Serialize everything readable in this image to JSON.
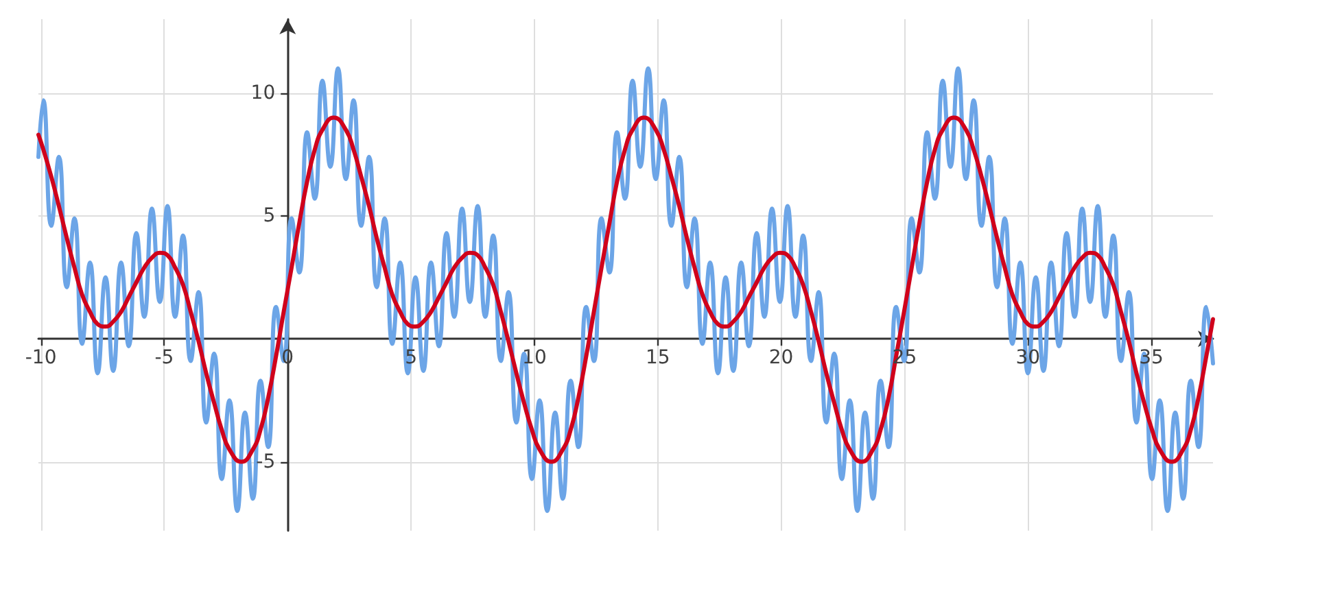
{
  "chart_data": {
    "type": "line",
    "x": [
      -10.1,
      -9.9,
      -9.58,
      -9.27,
      -8.95,
      -8.64,
      -8.33,
      -8.01,
      -7.7,
      -7.38,
      -7.07,
      -6.75,
      -6.44,
      -6.13,
      -5.81,
      -5.5,
      -5.18,
      -4.87,
      -4.56,
      -4.24,
      -3.93,
      -3.61,
      -3.3,
      -2.98,
      -2.67,
      -2.36,
      -2.04,
      -1.73,
      -1.41,
      -1.1,
      -0.79,
      -0.47,
      -0.16,
      0.16,
      0.47,
      0.79,
      1.1,
      1.41,
      1.73,
      2.04,
      2.36,
      2.67,
      2.98,
      3.3,
      3.61,
      3.93,
      4.24,
      4.56,
      4.87,
      5.18,
      5.5,
      5.81,
      6.13,
      6.44,
      6.75,
      7.07,
      7.38,
      7.7,
      8.01,
      8.33,
      8.64,
      8.95,
      9.27,
      9.58,
      9.9,
      10.21,
      10.52,
      10.84,
      11.15,
      11.47,
      11.78,
      12.1,
      12.41,
      12.72,
      13.04,
      13.35,
      13.67,
      13.98,
      14.29,
      14.61,
      14.92,
      15.24,
      15.55,
      15.87,
      16.18,
      16.49,
      16.81,
      17.12,
      17.44,
      17.75,
      18.06,
      18.38,
      18.69,
      19.01,
      19.32,
      19.63,
      19.95,
      20.26,
      20.58,
      20.89,
      21.21,
      21.52,
      21.83,
      22.15,
      22.46,
      22.78,
      23.09,
      23.4,
      23.72,
      24.03,
      24.35,
      24.66,
      24.98,
      25.29,
      25.6,
      25.92,
      26.23,
      26.55,
      26.86,
      27.17,
      27.49,
      27.8,
      28.12,
      28.43,
      28.75,
      29.06,
      29.37,
      29.69,
      30.0,
      30.32,
      30.63,
      30.94,
      31.26,
      31.57,
      31.89,
      32.2,
      32.52,
      32.83,
      33.14,
      33.46,
      33.77,
      34.09,
      34.4,
      34.71,
      35.03,
      35.34,
      35.66,
      35.97,
      36.29,
      36.6,
      36.91,
      37.23,
      37.5
    ],
    "xlim": [
      -10.1,
      37.5
    ],
    "xticks": [
      -10,
      -5,
      0,
      5,
      10,
      15,
      20,
      25,
      30,
      35
    ],
    "ylim": [
      -7.8,
      13
    ],
    "yticks": [
      -5,
      5,
      10
    ],
    "grid": true,
    "series": [
      {
        "color": "#6ca5e7",
        "values": [
          7.4,
          9.7,
          4.6,
          7.4,
          2.1,
          4.9,
          -0.2,
          3.1,
          -1.4,
          2.5,
          -1.3,
          3.1,
          -0.3,
          4.3,
          0.9,
          5.3,
          1.5,
          5.4,
          0.9,
          4.2,
          -0.9,
          1.9,
          -3.4,
          -0.6,
          -5.7,
          -2.5,
          -7.0,
          -3.0,
          -6.5,
          -1.7,
          -4.4,
          1.3,
          -0.9,
          4.9,
          2.7,
          8.4,
          5.7,
          10.5,
          7.0,
          11.0,
          6.5,
          9.7,
          4.6,
          7.4,
          2.1,
          4.9,
          -0.2,
          3.1,
          -1.4,
          2.5,
          -1.3,
          3.1,
          -0.3,
          4.3,
          0.9,
          5.3,
          1.5,
          5.4,
          0.9,
          4.2,
          -0.9,
          1.9,
          -3.4,
          -0.6,
          -5.7,
          -2.5,
          -7.0,
          -3.0,
          -6.5,
          -1.7,
          -4.4,
          1.3,
          -0.9,
          4.9,
          2.7,
          8.4,
          5.7,
          10.5,
          7.0,
          11.0,
          6.5,
          9.7,
          4.6,
          7.4,
          2.1,
          4.9,
          -0.2,
          3.1,
          -1.4,
          2.5,
          -1.3,
          3.1,
          -0.3,
          4.3,
          0.9,
          5.3,
          1.5,
          5.4,
          0.9,
          4.2,
          -0.9,
          1.9,
          -3.4,
          -0.6,
          -5.7,
          -2.5,
          -7.0,
          -3.0,
          -6.5,
          -1.7,
          -4.4,
          1.3,
          -0.9,
          4.9,
          2.7,
          8.4,
          5.7,
          10.5,
          7.0,
          11.0,
          6.5,
          9.7,
          4.6,
          7.4,
          2.1,
          4.9,
          -0.2,
          3.1,
          -1.4,
          2.5,
          -1.3,
          3.1,
          -0.3,
          4.3,
          0.9,
          5.3,
          1.5,
          5.4,
          0.9,
          4.2,
          -0.9,
          1.9,
          -3.4,
          -0.6,
          -5.7,
          -2.5,
          -7.0,
          -3.0,
          -6.5,
          -1.7,
          -4.4,
          1.3,
          -1.0
        ]
      },
      {
        "color": "#d0021b",
        "x": [
          -10.1,
          -9.9,
          -9.58,
          -9.27,
          -8.95,
          -8.64,
          -8.33,
          -8.01,
          -7.7,
          -7.38,
          -7.07,
          -6.75,
          -6.44,
          -6.13,
          -5.81,
          -5.5,
          -5.18,
          -4.87,
          -4.56,
          -4.24,
          -3.93,
          -3.61,
          -3.3,
          -2.98,
          -2.67,
          -2.36,
          -1.87,
          -1.41,
          -1.1,
          -0.79,
          -0.47,
          -0.16,
          0.16,
          0.47,
          0.79,
          1.1,
          1.41,
          1.87,
          2.36,
          2.67,
          2.98,
          3.3,
          3.61,
          3.93,
          4.24,
          4.56,
          4.87,
          5.18,
          5.5,
          5.81,
          6.13,
          6.44,
          6.75,
          7.07,
          7.38,
          7.7,
          8.01,
          8.33,
          8.64,
          8.95,
          9.27,
          9.58,
          9.9,
          10.21,
          10.69,
          11.15,
          11.47,
          11.78,
          12.1,
          12.41,
          12.72,
          13.04,
          13.35,
          13.67,
          13.98,
          14.44,
          14.92,
          15.24,
          15.55,
          15.87,
          16.18,
          16.49,
          16.81,
          17.12,
          17.44,
          17.75,
          18.06,
          18.38,
          18.69,
          19.01,
          19.32,
          19.63,
          19.95,
          20.26,
          20.58,
          20.89,
          21.21,
          21.52,
          21.83,
          22.15,
          22.46,
          22.78,
          23.26,
          23.72,
          24.03,
          24.35,
          24.66,
          24.98,
          25.29,
          25.6,
          25.92,
          26.23,
          26.55,
          27.0,
          27.49,
          27.8,
          28.12,
          28.43,
          28.75,
          29.06,
          29.37,
          29.69,
          30.0,
          30.32,
          30.63,
          30.94,
          31.26,
          31.57,
          31.89,
          32.2,
          32.52,
          32.83,
          33.14,
          33.46,
          33.77,
          34.09,
          34.4,
          34.71,
          35.03,
          35.34,
          35.83,
          36.29,
          36.6,
          36.91,
          37.23,
          37.5
        ],
        "values": [
          8.3,
          7.7,
          6.6,
          5.4,
          4.1,
          2.9,
          1.8,
          1.1,
          0.6,
          0.5,
          0.7,
          1.1,
          1.7,
          2.3,
          2.9,
          3.3,
          3.5,
          3.4,
          2.9,
          2.2,
          1.1,
          -0.1,
          -1.4,
          -2.6,
          -3.7,
          -4.5,
          -5.0,
          -4.5,
          -3.7,
          -2.4,
          -0.7,
          1.1,
          2.9,
          4.7,
          6.4,
          7.7,
          8.5,
          9.0,
          8.5,
          7.7,
          6.6,
          5.4,
          4.1,
          2.9,
          1.8,
          1.1,
          0.6,
          0.5,
          0.7,
          1.1,
          1.7,
          2.3,
          2.9,
          3.3,
          3.5,
          3.4,
          2.9,
          2.2,
          1.1,
          -0.1,
          -1.4,
          -2.6,
          -3.7,
          -4.5,
          -5.0,
          -4.5,
          -3.7,
          -2.4,
          -0.7,
          1.1,
          2.9,
          4.7,
          6.4,
          7.7,
          8.5,
          9.0,
          8.5,
          7.7,
          6.6,
          5.4,
          4.1,
          2.9,
          1.8,
          1.1,
          0.6,
          0.5,
          0.7,
          1.1,
          1.7,
          2.3,
          2.9,
          3.3,
          3.5,
          3.4,
          2.9,
          2.2,
          1.1,
          -0.1,
          -1.4,
          -2.6,
          -3.7,
          -4.5,
          -5.0,
          -4.5,
          -3.7,
          -2.4,
          -0.7,
          1.1,
          2.9,
          4.7,
          6.4,
          7.7,
          8.5,
          9.0,
          8.5,
          7.7,
          6.6,
          5.4,
          4.1,
          2.9,
          1.8,
          1.1,
          0.6,
          0.5,
          0.7,
          1.1,
          1.7,
          2.3,
          2.9,
          3.3,
          3.5,
          3.4,
          2.9,
          2.2,
          1.1,
          -0.1,
          -1.4,
          -2.6,
          -3.7,
          -4.5,
          -5.0,
          -4.5,
          -3.7,
          -2.4,
          -0.7,
          0.8
        ]
      }
    ]
  }
}
